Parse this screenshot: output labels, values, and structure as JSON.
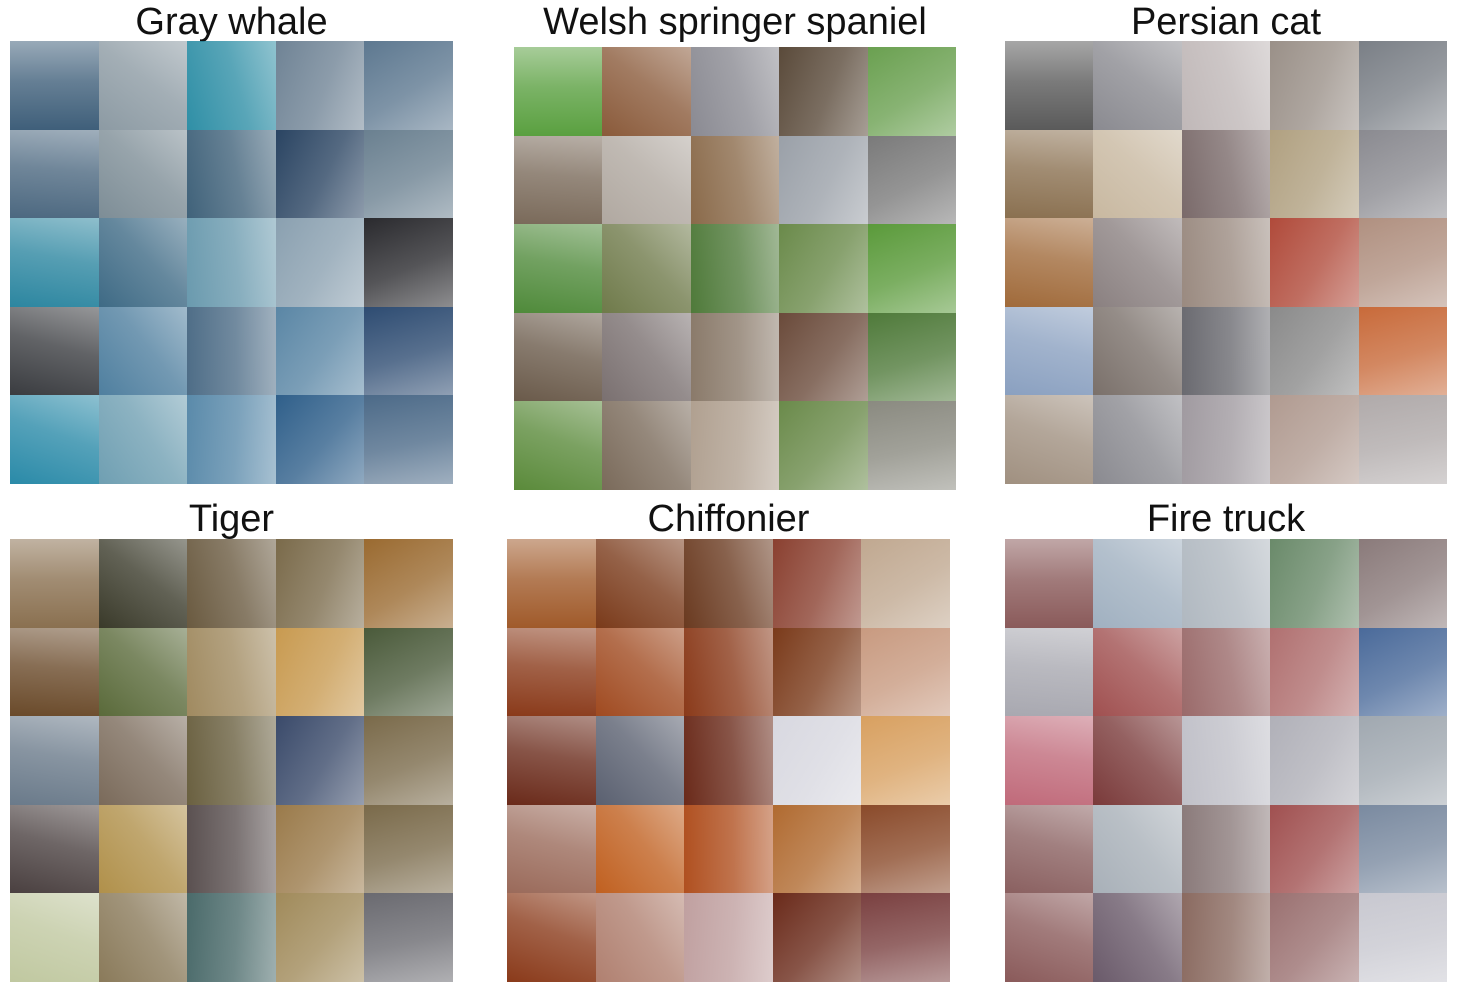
{
  "figure": {
    "panels": [
      {
        "title": "Gray whale",
        "tile_colors": [
          "#3f5f7a",
          "#8c9aa3",
          "#2f8fa6",
          "#6f8395",
          "#5d7890",
          "#4c6880",
          "#7d8d96",
          "#40627a",
          "#2a4462",
          "#6a8090",
          "#2c86a0",
          "#3e6a85",
          "#6a9aae",
          "#8aa0b0",
          "#2a2a2e",
          "#3a3c40",
          "#4f7f9f",
          "#4e6d87",
          "#5a86a5",
          "#2e4c72",
          "#2a8aa8",
          "#6f9fb2",
          "#5a8aaa",
          "#2f5f8a",
          "#4c6a88"
        ]
      },
      {
        "title": "Welsh springer spaniel",
        "tile_colors": [
          "#5aa040",
          "#8a5a3a",
          "#8a8a92",
          "#5a4a3a",
          "#6aa050",
          "#7a6a5a",
          "#b0a8a0",
          "#8a6a4a",
          "#9aa0a8",
          "#7a7a7a",
          "#4f8a3a",
          "#6f7a4a",
          "#4f7a3a",
          "#6a8a4a",
          "#5a9a3a",
          "#6a5a4a",
          "#7a7070",
          "#8a7a6a",
          "#6a4a3a",
          "#4f7a3a",
          "#5a8a3a",
          "#7a6a5a",
          "#b0a090",
          "#6a8a4a",
          "#8a8a80"
        ]
      },
      {
        "title": "Persian cat",
        "tile_colors": [
          "#5a5a5a",
          "#8a8a90",
          "#c0b8b8",
          "#9a9088",
          "#7a7f86",
          "#8a7050",
          "#c8b8a0",
          "#7a6a6a",
          "#b0a080",
          "#8a8a90",
          "#a06a3a",
          "#8a8080",
          "#9a8a80",
          "#b04a3a",
          "#b09080",
          "#8aa0c0",
          "#7a706a",
          "#6a6a70",
          "#8a8a8a",
          "#c86a3a",
          "#a09080",
          "#8a8a90",
          "#a09aa0",
          "#b09a90",
          "#b0aaaa"
        ]
      },
      {
        "title": "Tiger",
        "tile_colors": [
          "#8a7050",
          "#3a3a2a",
          "#6a5a40",
          "#7a6a4a",
          "#9a6a30",
          "#6a4a2a",
          "#5a6a3a",
          "#a08a60",
          "#c89a50",
          "#4a5a3a",
          "#6a7a8a",
          "#7a6a5a",
          "#6a6040",
          "#3a4a6a",
          "#7a6a4a",
          "#4a4040",
          "#b0904a",
          "#5a5050",
          "#9a7a4a",
          "#7a6a4a",
          "#c0c8a0",
          "#8a7a5a",
          "#4a6a6a",
          "#a08a5a",
          "#6a6a70"
        ]
      },
      {
        "title": "Chiffonier",
        "tile_colors": [
          "#a05a2a",
          "#7a3a1a",
          "#6a3a20",
          "#8a4030",
          "#c0a890",
          "#8a3a1a",
          "#a04a20",
          "#8a3a1a",
          "#7a3a1a",
          "#c89a80",
          "#6a2a1a",
          "#5a6070",
          "#6a2a1a",
          "#d8d8e0",
          "#d8a060",
          "#9a6a5a",
          "#c06020",
          "#b05020",
          "#b06a30",
          "#8a4a2a",
          "#8a3a1a",
          "#b08070",
          "#c0a0a0",
          "#6a2a1a",
          "#7a4040"
        ]
      },
      {
        "title": "Fire truck",
        "tile_colors": [
          "#8a5a5a",
          "#a0b0c0",
          "#b0b8c0",
          "#6a8a6a",
          "#8a7a7a",
          "#a8a8b0",
          "#a05050",
          "#9a6a6a",
          "#b07070",
          "#4a6a9a",
          "#c06a7a",
          "#7a3a3a",
          "#c0c0c8",
          "#b0b0b8",
          "#a0a8b0",
          "#8a6060",
          "#a8b0b8",
          "#8a7a7a",
          "#a05050",
          "#7a8aa0",
          "#8a5a5a",
          "#6a5a6a",
          "#8a6a60",
          "#9a7070",
          "#c8c8d0"
        ]
      }
    ]
  }
}
